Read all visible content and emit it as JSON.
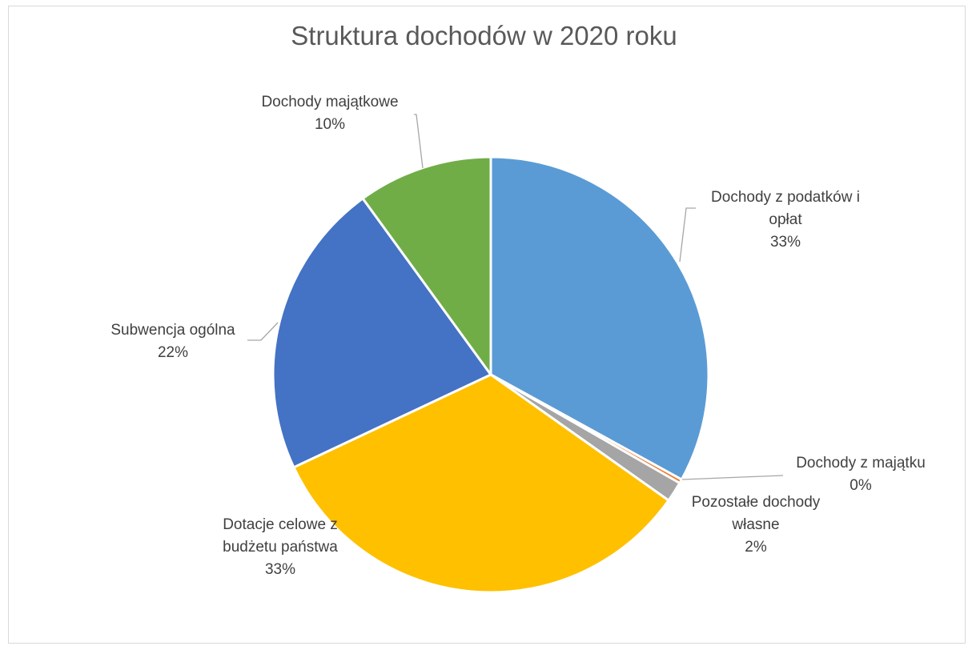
{
  "chart_data": {
    "type": "pie",
    "title": "Struktura dochodów w 2020 roku",
    "slices": [
      {
        "label_lines": [
          "Dochody z podatków i",
          "opłat"
        ],
        "percent_label": "33%",
        "value": 33.0,
        "color": "#5b9bd5"
      },
      {
        "label_lines": [
          "Dochody z majątku"
        ],
        "percent_label": "0%",
        "value": 0.3,
        "color": "#ed7d31"
      },
      {
        "label_lines": [
          "Pozostałe dochody",
          "własne"
        ],
        "percent_label": "2%",
        "value": 1.5,
        "color": "#a5a5a5"
      },
      {
        "label_lines": [
          "Dotacje celowe z",
          "budżetu państwa"
        ],
        "percent_label": "33%",
        "value": 33.2,
        "color": "#ffc000"
      },
      {
        "label_lines": [
          "Subwencja ogólna"
        ],
        "percent_label": "22%",
        "value": 22.0,
        "color": "#4472c4"
      },
      {
        "label_lines": [
          "Dochody majątkowe"
        ],
        "percent_label": "10%",
        "value": 10.0,
        "color": "#70ad47"
      }
    ],
    "legend": "none"
  }
}
